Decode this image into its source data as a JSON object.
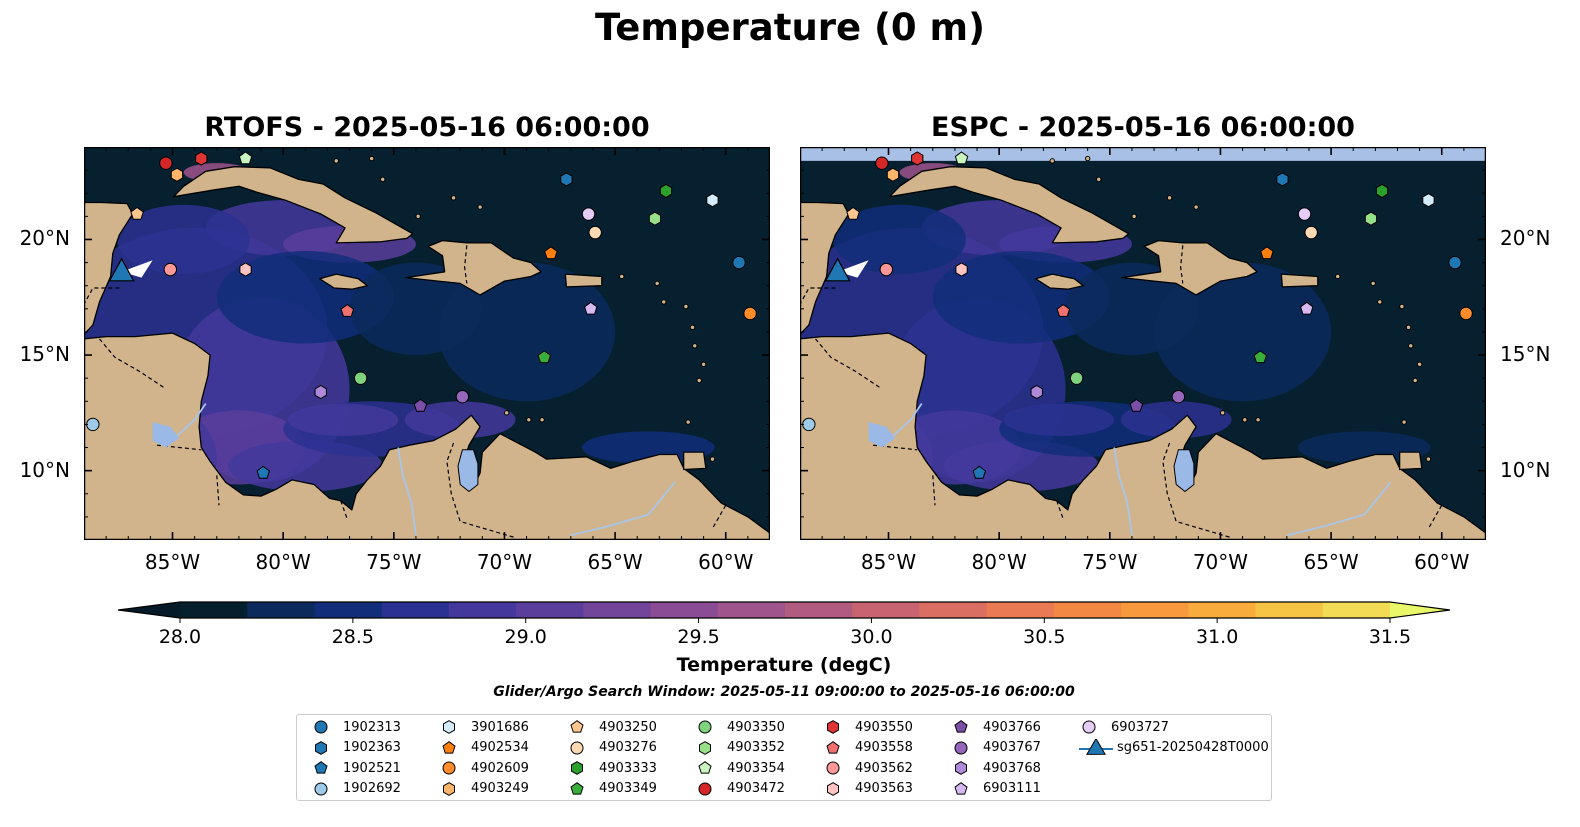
{
  "figure": {
    "title": "Temperature (0 m)",
    "left_panel_title": "RTOFS - 2025-05-16 06:00:00",
    "right_panel_title": "ESPC - 2025-05-16 06:00:00",
    "search_window": "Glider/Argo Search Window: 2025-05-11 09:00:00 to 2025-05-16 06:00:00"
  },
  "map_extent": {
    "lon": [
      -89,
      -58
    ],
    "lat": [
      7,
      24
    ]
  },
  "axes": {
    "lon_ticks": [
      "85°W",
      "80°W",
      "75°W",
      "70°W",
      "65°W",
      "60°W"
    ],
    "lon_tick_values": [
      -85,
      -80,
      -75,
      -70,
      -65,
      -60
    ],
    "lat_ticks": [
      "10°N",
      "15°N",
      "20°N"
    ],
    "lat_tick_values": [
      10,
      15,
      20
    ]
  },
  "colorbar": {
    "label": "Temperature (degC)",
    "min": 28.0,
    "max": 31.5,
    "step": 0.25,
    "tick_labels": [
      "28.0",
      "28.5",
      "29.0",
      "29.5",
      "30.0",
      "30.5",
      "31.0",
      "31.5"
    ],
    "tick_values": [
      28.0,
      28.5,
      29.0,
      29.5,
      30.0,
      30.5,
      31.0,
      31.5
    ],
    "colors": [
      "#051f2e",
      "#0c2a5c",
      "#122e7a",
      "#2b3190",
      "#44389c",
      "#5b3e9c",
      "#73459a",
      "#8a4d95",
      "#a0548c",
      "#b25b80",
      "#c86472",
      "#da6e62",
      "#ea7a53",
      "#f38845",
      "#f7993c",
      "#f8ac3b",
      "#f5c444",
      "#f2dc55"
    ],
    "extend_low": "#041a28",
    "extend_high": "#e8f86a"
  },
  "colors": {
    "land": "#d2b48c",
    "ocean_deep": "#06202f",
    "lakes": "#9ab9e6",
    "rivers": "#a8c6e8"
  },
  "legend": {
    "entries": [
      {
        "label": "1902313",
        "marker": "circle",
        "color": "#1f77b4"
      },
      {
        "label": "1902363",
        "marker": "hexagon",
        "color": "#1f77b4"
      },
      {
        "label": "1902521",
        "marker": "pentagon",
        "color": "#1f77b4"
      },
      {
        "label": "1902692",
        "marker": "circle",
        "color": "#9ecae9"
      },
      {
        "label": "3901686",
        "marker": "hexagon",
        "color": "#d2ecfa"
      },
      {
        "label": "4902534",
        "marker": "pentagon",
        "color": "#ff7f0e"
      },
      {
        "label": "4902609",
        "marker": "circle",
        "color": "#ff8c2a"
      },
      {
        "label": "4903249",
        "marker": "hexagon",
        "color": "#ffb66a"
      },
      {
        "label": "4903250",
        "marker": "pentagon",
        "color": "#ffc690"
      },
      {
        "label": "4903276",
        "marker": "circle",
        "color": "#ffd9b3"
      },
      {
        "label": "4903333",
        "marker": "hexagon",
        "color": "#2ca02c"
      },
      {
        "label": "4903349",
        "marker": "pentagon",
        "color": "#3aae3a"
      },
      {
        "label": "4903350",
        "marker": "circle",
        "color": "#7fd37f"
      },
      {
        "label": "4903352",
        "marker": "hexagon",
        "color": "#98df8a"
      },
      {
        "label": "4903354",
        "marker": "pentagon",
        "color": "#c9f5c0"
      },
      {
        "label": "4903472",
        "marker": "circle",
        "color": "#d62728"
      },
      {
        "label": "4903550",
        "marker": "hexagon",
        "color": "#e03535"
      },
      {
        "label": "4903558",
        "marker": "pentagon",
        "color": "#f07070"
      },
      {
        "label": "4903562",
        "marker": "circle",
        "color": "#ff9896"
      },
      {
        "label": "4903563",
        "marker": "hexagon",
        "color": "#ffc4c2"
      },
      {
        "label": "4903766",
        "marker": "pentagon",
        "color": "#7b4fa8"
      },
      {
        "label": "4903767",
        "marker": "circle",
        "color": "#9467bd"
      },
      {
        "label": "4903768",
        "marker": "hexagon",
        "color": "#b08ad8"
      },
      {
        "label": "6903111",
        "marker": "pentagon",
        "color": "#d7b8f0"
      },
      {
        "label": "6903727",
        "marker": "circle",
        "color": "#e6cdf7"
      },
      {
        "label": "sg651-20250428T0000",
        "marker": "triangle",
        "color": "#1f77b4"
      }
    ]
  },
  "floats": [
    {
      "id": "1902313",
      "lon": -59.4,
      "lat": 19.0
    },
    {
      "id": "1902363",
      "lon": -67.2,
      "lat": 22.6
    },
    {
      "id": "1902521",
      "lon": -80.9,
      "lat": 9.9
    },
    {
      "id": "1902692",
      "lon": -88.6,
      "lat": 12.0
    },
    {
      "id": "3901686",
      "lon": -60.6,
      "lat": 21.7
    },
    {
      "id": "4902534",
      "lon": -67.9,
      "lat": 19.4
    },
    {
      "id": "4902609",
      "lon": -58.9,
      "lat": 16.8
    },
    {
      "id": "4903249",
      "lon": -84.8,
      "lat": 22.8
    },
    {
      "id": "4903250",
      "lon": -86.6,
      "lat": 21.1
    },
    {
      "id": "4903276",
      "lon": -65.9,
      "lat": 20.3
    },
    {
      "id": "4903333",
      "lon": -62.7,
      "lat": 22.1
    },
    {
      "id": "4903349",
      "lon": -68.2,
      "lat": 14.9
    },
    {
      "id": "4903350",
      "lon": -76.5,
      "lat": 14.0
    },
    {
      "id": "4903352",
      "lon": -63.2,
      "lat": 20.9
    },
    {
      "id": "4903354",
      "lon": -81.7,
      "lat": 23.5
    },
    {
      "id": "4903472",
      "lon": -85.3,
      "lat": 23.3
    },
    {
      "id": "4903550",
      "lon": -83.7,
      "lat": 23.5
    },
    {
      "id": "4903558",
      "lon": -77.1,
      "lat": 16.9
    },
    {
      "id": "4903562",
      "lon": -85.1,
      "lat": 18.7
    },
    {
      "id": "4903563",
      "lon": -81.7,
      "lat": 18.7
    },
    {
      "id": "4903766",
      "lon": -73.8,
      "lat": 12.8
    },
    {
      "id": "4903767",
      "lon": -71.9,
      "lat": 13.2
    },
    {
      "id": "4903768",
      "lon": -78.3,
      "lat": 13.4
    },
    {
      "id": "6903111",
      "lon": -66.1,
      "lat": 17.0
    },
    {
      "id": "6903727",
      "lon": -66.2,
      "lat": 21.1
    }
  ],
  "glider": {
    "id": "sg651-20250428T0000",
    "lon": -87.3,
    "lat": 18.6
  }
}
